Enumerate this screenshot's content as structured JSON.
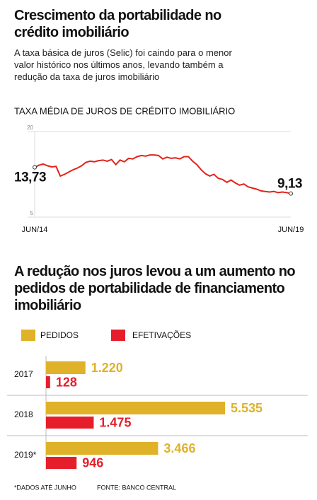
{
  "header": {
    "title": "Crescimento da portabilidade no crédito imobiliário",
    "subtitle": "A taxa básica de juros (Selic) foi caindo para o menor valor histórico nos últimos anos, levando também a redução da taxa de juros imobiliário"
  },
  "chart_data": [
    {
      "type": "line",
      "title": "TAXA MÉDIA DE JUROS DE CRÉDITO IMOBILIÁRIO",
      "color": "#e2231a",
      "categories": [
        "JUN/14",
        null,
        null,
        null,
        null,
        null,
        null,
        null,
        null,
        null,
        null,
        null,
        null,
        null,
        null,
        null,
        null,
        null,
        null,
        null,
        null,
        null,
        null,
        null,
        null,
        null,
        null,
        null,
        null,
        null,
        null,
        null,
        null,
        null,
        null,
        null,
        null,
        null,
        null,
        null,
        null,
        null,
        null,
        null,
        null,
        null,
        null,
        null,
        null,
        null,
        null,
        null,
        null,
        null,
        null,
        null,
        null,
        null,
        null,
        null,
        "JUN/19"
      ],
      "values": [
        13.73,
        14.1,
        14.3,
        14.0,
        13.8,
        13.9,
        12.2,
        12.5,
        12.9,
        13.3,
        13.6,
        14.0,
        14.6,
        14.8,
        14.7,
        14.9,
        15.0,
        14.8,
        15.1,
        14.2,
        15.0,
        14.7,
        15.3,
        15.2,
        15.6,
        15.8,
        15.7,
        15.9,
        15.9,
        15.8,
        15.2,
        15.5,
        15.3,
        15.4,
        15.2,
        15.6,
        15.6,
        14.8,
        14.2,
        13.3,
        12.6,
        12.2,
        12.5,
        11.8,
        11.6,
        11.1,
        11.5,
        11.0,
        10.6,
        10.8,
        10.3,
        10.1,
        9.9,
        9.6,
        9.5,
        9.4,
        9.5,
        9.3,
        9.4,
        9.3,
        9.13
      ],
      "value_labels": [
        "13,73",
        null,
        null,
        null,
        null,
        null,
        null,
        null,
        null,
        null,
        null,
        null,
        null,
        null,
        null,
        null,
        null,
        null,
        null,
        null,
        null,
        null,
        null,
        null,
        null,
        null,
        null,
        null,
        null,
        null,
        null,
        null,
        null,
        null,
        null,
        null,
        null,
        null,
        null,
        null,
        null,
        null,
        null,
        null,
        null,
        null,
        null,
        null,
        null,
        null,
        null,
        null,
        null,
        null,
        null,
        null,
        null,
        null,
        null,
        null,
        "9,13"
      ],
      "ylim": [
        5,
        20
      ],
      "yticks": [
        20,
        5
      ],
      "grid": true
    },
    {
      "type": "hbar",
      "title": "A redução nos juros levou a um aumento no pedidos de portabilidade de financiamento imobiliário",
      "categories": [
        "2017",
        "2018",
        "2019*"
      ],
      "series": [
        {
          "name": "PEDIDOS",
          "color": "#dfb22a",
          "values": [
            1220,
            5535,
            3466
          ],
          "value_labels": [
            "1.220",
            "5.535",
            "3.466"
          ]
        },
        {
          "name": "EFETIVAÇÕES",
          "color": "#e61e2b",
          "values": [
            128,
            1475,
            946
          ],
          "value_labels": [
            "128",
            "1.475",
            "946"
          ]
        }
      ],
      "notes": [
        "*DADOS ATÉ JUNHO",
        "FONTE: BANCO CENTRAL"
      ]
    }
  ]
}
